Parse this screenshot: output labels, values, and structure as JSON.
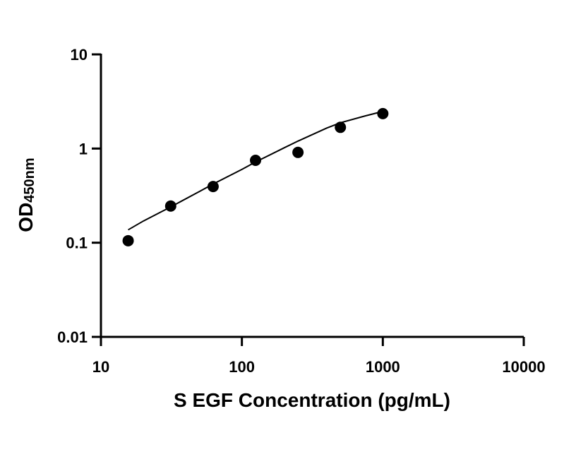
{
  "chart_data": {
    "type": "scatter",
    "xlabel": "S EGF Concentration (pg/mL)",
    "ylabel_main": "OD",
    "ylabel_sub": "450nm",
    "x_scale": "log",
    "y_scale": "log",
    "xlim": [
      10,
      10000
    ],
    "ylim": [
      0.01,
      10
    ],
    "x_ticks": [
      10,
      100,
      1000,
      10000
    ],
    "x_tick_labels": [
      "10",
      "100",
      "1000",
      "10000"
    ],
    "y_ticks": [
      0.01,
      0.1,
      1,
      10
    ],
    "y_tick_labels": [
      "0.01",
      "0.1",
      "1",
      "10"
    ],
    "grid": false,
    "series": [
      {
        "x": [
          15.6,
          31.25,
          62.5,
          125,
          250,
          500,
          1000
        ],
        "y": [
          0.105,
          0.245,
          0.395,
          0.75,
          0.91,
          1.68,
          2.35
        ]
      }
    ],
    "fit_curve": {
      "x": [
        15.6,
        20,
        31.25,
        50,
        62.5,
        100,
        125,
        200,
        250,
        400,
        500,
        750,
        1000
      ],
      "y": [
        0.137,
        0.17,
        0.24,
        0.35,
        0.42,
        0.6,
        0.72,
        1.02,
        1.2,
        1.65,
        1.88,
        2.22,
        2.48
      ]
    },
    "colors": {
      "axis": "#000000",
      "points": "#000000",
      "curve": "#000000"
    }
  }
}
